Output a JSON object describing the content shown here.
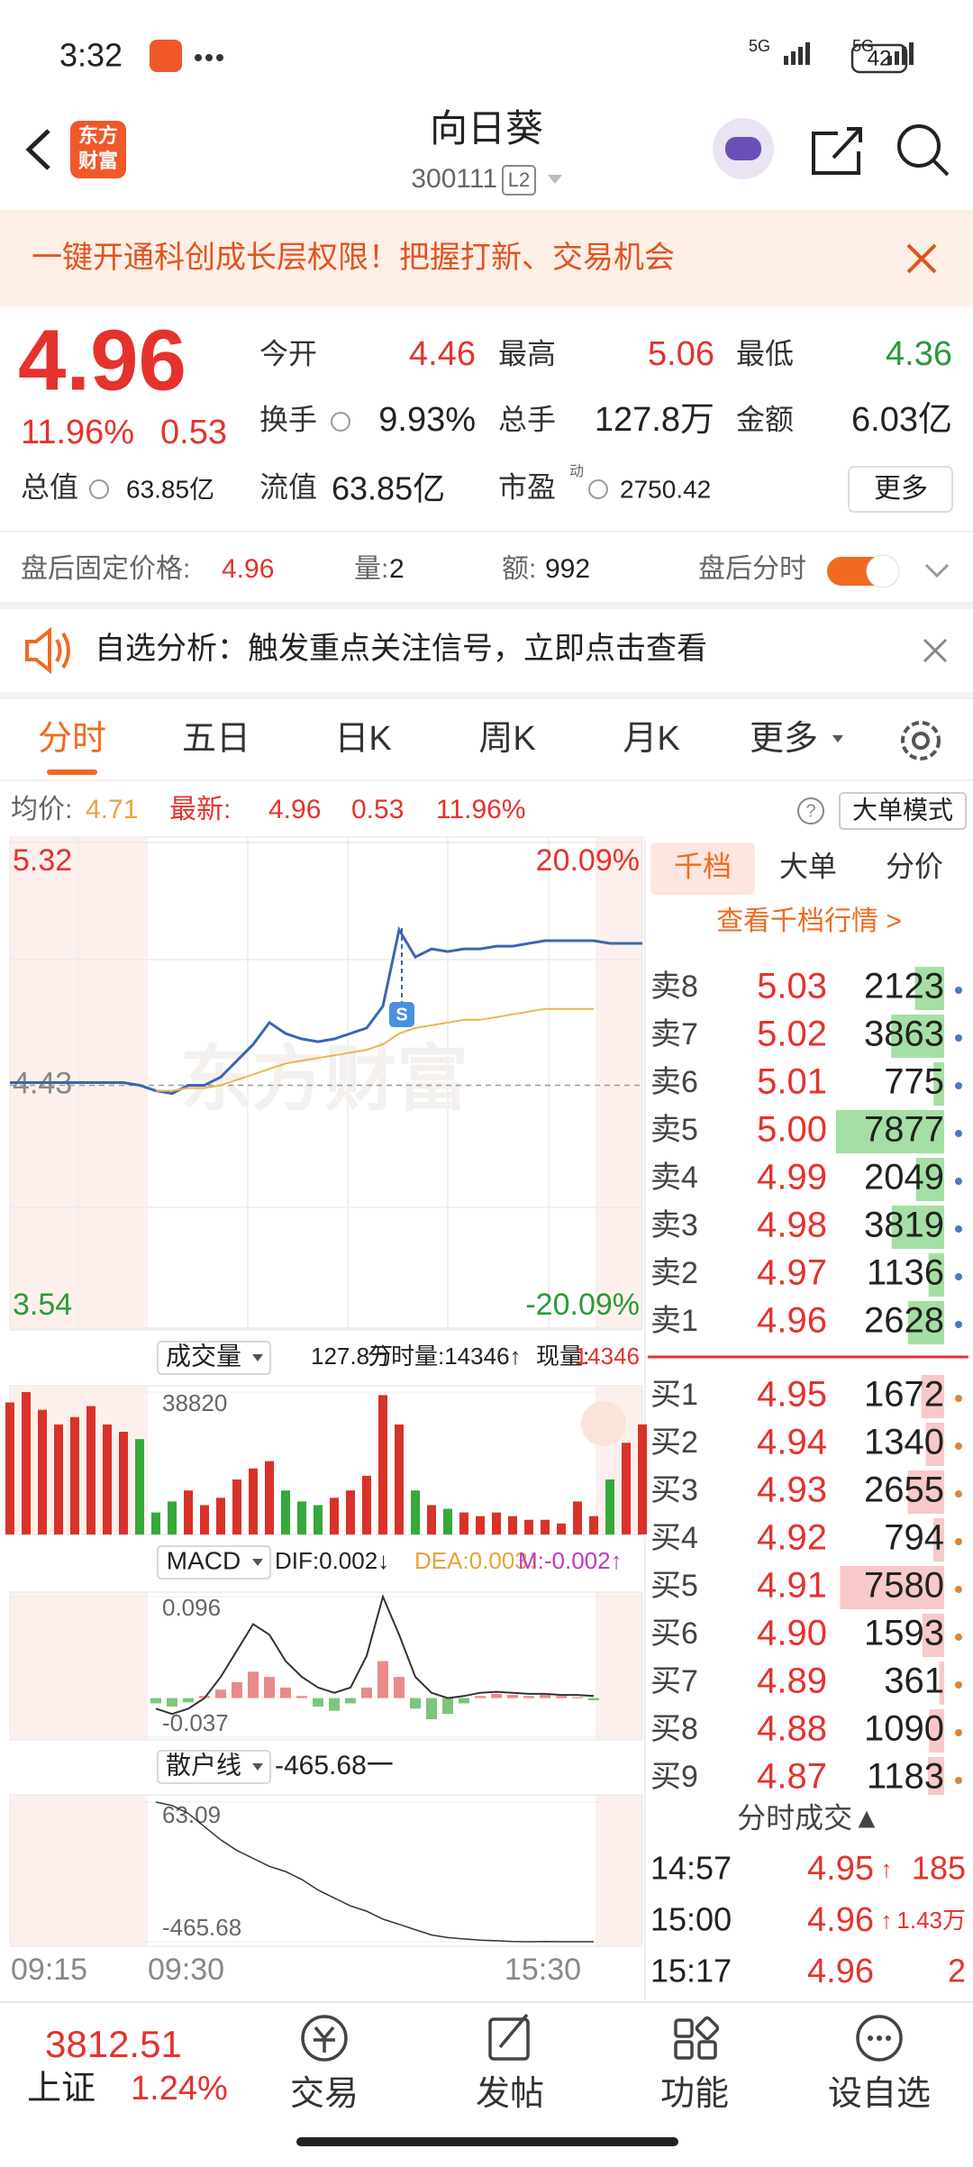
{
  "status_bar": {
    "time": "3:32",
    "network": "5G",
    "battery": "42"
  },
  "header": {
    "logo": [
      "东方",
      "财富"
    ],
    "title": "向日葵",
    "code": "300111",
    "badge": "L2"
  },
  "banner": "一键开通科创成长层权限！把握打新、交易机会",
  "quote": {
    "price": "4.96",
    "change_pct": "11.96%",
    "change": "0.53",
    "fields": [
      {
        "label": "今开",
        "value": "4.46"
      },
      {
        "label": "最高",
        "value": "5.06"
      },
      {
        "label": "最低",
        "value": "4.36"
      },
      {
        "label": "换手",
        "value": "9.93%"
      },
      {
        "label": "总手",
        "value": "127.8万"
      },
      {
        "label": "金额",
        "value": "6.03亿"
      },
      {
        "label": "总值",
        "value": "63.85亿"
      },
      {
        "label": "流值",
        "value": "63.85亿"
      },
      {
        "label": "市盈",
        "value": "2750.42"
      }
    ],
    "pe_mark": "动",
    "more": "更多"
  },
  "after_hours": {
    "price_label": "盘后固定价格:",
    "price": "4.96",
    "volume_label": "量:",
    "volume": "2",
    "amount_label": "额:",
    "amount": "992",
    "chart_label": "盘后分时"
  },
  "notice": "自选分析：触发重点关注信号，立即点击查看",
  "tabs": [
    "分时",
    "五日",
    "日K",
    "周K",
    "月K",
    "更多"
  ],
  "summary": {
    "avg_label": "均价:",
    "avg": "4.71",
    "last_label": "最新:",
    "last": "4.96",
    "change": "0.53",
    "change_pct": "11.96%",
    "mode": "大单模式"
  },
  "chart_data": [
    {
      "type": "line",
      "watermark": "东方财富",
      "marker": "S",
      "ylim": [
        3.54,
        5.32
      ],
      "yticks": [
        3.54,
        4.43,
        5.32
      ],
      "y2lim": [
        -20.09,
        20.09
      ],
      "y2ticks": [
        {
          "value": -20.09,
          "label": "-20.09%"
        },
        {
          "value": 20.09,
          "label": "20.09%"
        }
      ],
      "series": [
        {
          "color": "#3b66b0",
          "values": [
            4.44,
            4.44,
            4.44,
            4.44,
            4.44,
            4.44,
            4.44,
            4.44,
            4.43,
            4.41,
            4.4,
            4.43,
            4.43,
            4.46,
            4.52,
            4.58,
            4.66,
            4.62,
            4.6,
            4.59,
            4.6,
            4.62,
            4.64,
            4.72,
            5.0,
            4.9,
            4.93,
            4.92,
            4.93,
            4.93,
            4.94,
            4.94,
            4.95,
            4.96,
            4.96,
            4.96,
            4.96,
            4.95,
            4.95,
            4.95
          ]
        },
        {
          "color": "#e8b64c",
          "values": [
            null,
            null,
            null,
            null,
            null,
            null,
            null,
            null,
            null,
            4.41,
            4.41,
            4.42,
            4.42,
            4.43,
            4.45,
            4.47,
            4.49,
            4.51,
            4.52,
            4.53,
            4.54,
            4.55,
            4.56,
            4.58,
            4.62,
            4.64,
            4.65,
            4.66,
            4.67,
            4.67,
            4.68,
            4.69,
            4.7,
            4.71,
            4.71,
            4.71,
            4.71,
            null,
            null,
            null
          ]
        }
      ]
    },
    {
      "type": "bar",
      "title": "成交量",
      "total": "127.8万",
      "period_volume": "分时量:14346↑",
      "current_label": "现量:",
      "current": "14346",
      "ylim": [
        0,
        38820
      ],
      "yticks": [
        38820
      ],
      "values": [
        36000,
        38820,
        34000,
        30000,
        32000,
        35000,
        30000,
        28000,
        26000,
        6000,
        9000,
        12000,
        8000,
        10000,
        15000,
        18000,
        20000,
        12000,
        9000,
        8000,
        10000,
        12000,
        16000,
        38000,
        30000,
        12000,
        8000,
        7000,
        6000,
        5000,
        6000,
        5000,
        4000,
        4000,
        3000,
        9000,
        5000,
        15000,
        25000,
        30000
      ]
    },
    {
      "type": "bar",
      "title": "MACD",
      "dif": "DIF:0.002↓",
      "dea": "DEA:0.003↓",
      "m": "M:-0.002↑",
      "ylim": [
        -0.037,
        0.096
      ],
      "yticks": [
        -0.037,
        0.096
      ],
      "values": [
        null,
        null,
        null,
        null,
        null,
        null,
        null,
        null,
        null,
        -0.005,
        -0.008,
        -0.004,
        0.002,
        0.008,
        0.015,
        0.025,
        0.02,
        0.01,
        0.002,
        -0.008,
        -0.012,
        -0.005,
        0.01,
        0.035,
        0.02,
        -0.01,
        -0.02,
        -0.015,
        -0.005,
        0.002,
        0.004,
        0.003,
        0.002,
        0.003,
        0.002,
        0.001,
        -0.002,
        null,
        null,
        null
      ],
      "series": [
        {
          "color": "#333333",
          "values": [
            null,
            null,
            null,
            null,
            null,
            null,
            null,
            null,
            null,
            -0.01,
            -0.015,
            -0.01,
            0,
            0.02,
            0.045,
            0.07,
            0.06,
            0.035,
            0.02,
            0.01,
            0.005,
            0.01,
            0.04,
            0.096,
            0.06,
            0.02,
            0.005,
            0,
            0.002,
            0.005,
            0.006,
            0.005,
            0.004,
            0.004,
            0.003,
            0.003,
            0.002,
            null,
            null,
            null
          ]
        }
      ]
    },
    {
      "type": "line",
      "title": "散户线",
      "current": "-465.68一",
      "ylim": [
        -465.68,
        63.09
      ],
      "yticks": [
        -465.68,
        63.09
      ],
      "series": [
        {
          "color": "#333333",
          "values": [
            null,
            null,
            null,
            null,
            null,
            null,
            null,
            null,
            null,
            63.09,
            50,
            20,
            -30,
            -80,
            -120,
            -150,
            -180,
            -200,
            -230,
            -270,
            -300,
            -330,
            -350,
            -380,
            -400,
            -420,
            -440,
            -450,
            -455,
            -460,
            -462,
            -465,
            -465.68,
            -465,
            -465.68,
            -465.68,
            -465.68,
            null,
            null,
            null
          ]
        }
      ],
      "time_labels": [
        "09:15",
        "09:30",
        "15:30"
      ]
    }
  ],
  "order_book": {
    "tabs": [
      "千档",
      "大单",
      "分价"
    ],
    "link": "查看千档行情 >",
    "sell": [
      {
        "label": "卖8",
        "price": "5.03",
        "qty": 2123
      },
      {
        "label": "卖7",
        "price": "5.02",
        "qty": 3863
      },
      {
        "label": "卖6",
        "price": "5.01",
        "qty": 775
      },
      {
        "label": "卖5",
        "price": "5.00",
        "qty": 7877
      },
      {
        "label": "卖4",
        "price": "4.99",
        "qty": 2049
      },
      {
        "label": "卖3",
        "price": "4.98",
        "qty": 3819
      },
      {
        "label": "卖2",
        "price": "4.97",
        "qty": 1136
      },
      {
        "label": "卖1",
        "price": "4.96",
        "qty": 2628
      }
    ],
    "buy": [
      {
        "label": "买1",
        "price": "4.95",
        "qty": 1672
      },
      {
        "label": "买2",
        "price": "4.94",
        "qty": 1340
      },
      {
        "label": "买3",
        "price": "4.93",
        "qty": 2655
      },
      {
        "label": "买4",
        "price": "4.92",
        "qty": 794
      },
      {
        "label": "买5",
        "price": "4.91",
        "qty": 7580
      },
      {
        "label": "买6",
        "price": "4.90",
        "qty": 1593
      },
      {
        "label": "买7",
        "price": "4.89",
        "qty": 361
      },
      {
        "label": "买8",
        "price": "4.88",
        "qty": 1090
      },
      {
        "label": "买9",
        "price": "4.87",
        "qty": 1183
      }
    ]
  },
  "trades": {
    "title": "分时成交▲",
    "rows": [
      {
        "time": "14:57",
        "price": "4.95",
        "dir": "↑",
        "qty": "185"
      },
      {
        "time": "15:00",
        "price": "4.96",
        "dir": "↑",
        "qty": "1.43万"
      },
      {
        "time": "15:17",
        "price": "4.96",
        "qty": "2"
      }
    ]
  },
  "bottom": {
    "index_value": "3812.51",
    "index_name": "上证",
    "index_change": "1.24%",
    "nav": [
      "交易",
      "发帖",
      "功能",
      "设自选"
    ]
  }
}
